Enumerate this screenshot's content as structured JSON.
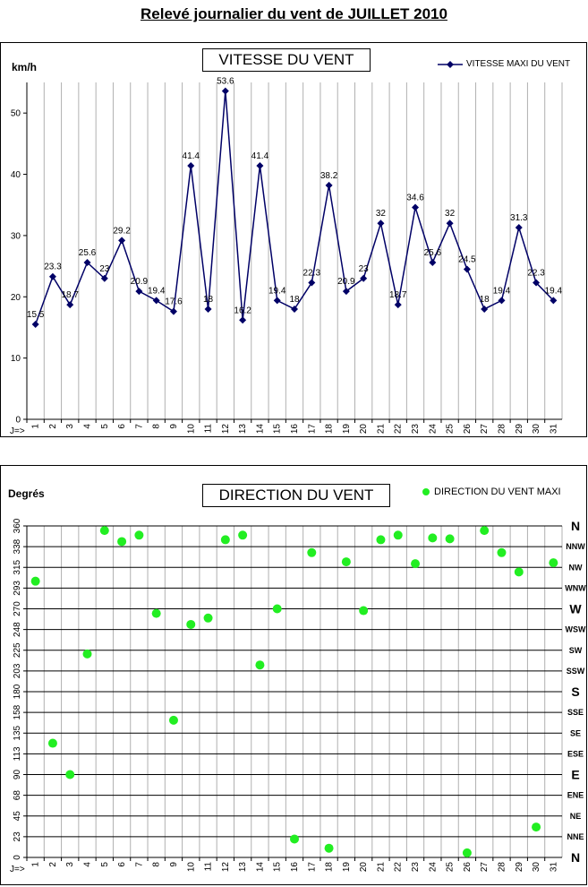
{
  "page": {
    "title": "Relevé journalier du vent de JUILLET 2010"
  },
  "chart_data": [
    {
      "type": "line",
      "title": "VITESSE DU VENT",
      "ylabel": "km/h",
      "xlabel": "",
      "x_prefix": "J=>",
      "categories": [
        "1",
        "2",
        "3",
        "4",
        "5",
        "6",
        "7",
        "8",
        "9",
        "10",
        "11",
        "12",
        "13",
        "14",
        "15",
        "16",
        "17",
        "18",
        "19",
        "20",
        "21",
        "22",
        "23",
        "24",
        "25",
        "26",
        "27",
        "28",
        "29",
        "30",
        "31"
      ],
      "series": [
        {
          "name": "VITESSE MAXI DU VENT",
          "color": "#000066",
          "values": [
            15.5,
            23.3,
            18.7,
            25.6,
            23,
            29.2,
            20.9,
            19.4,
            17.6,
            41.4,
            18,
            53.6,
            16.2,
            41.4,
            19.4,
            18,
            22.3,
            38.2,
            20.9,
            23,
            32,
            18.7,
            34.6,
            25.6,
            32,
            24.5,
            18,
            19.4,
            31.3,
            22.3,
            19.4
          ]
        }
      ],
      "data_labels": [
        "15.5",
        "23.3",
        "18.7",
        "25.6",
        "23",
        "29.2",
        "20.9",
        "19.4",
        "17.6",
        "41.4",
        "18",
        "53.6",
        "16.2",
        "41.4",
        "19.4",
        "18",
        "22.3",
        "38.2",
        "20.9",
        "23",
        "32",
        "18.7",
        "34.6",
        "25.6",
        "32",
        "24.5",
        "18",
        "19.4",
        "31.3",
        "22.3",
        "19.4"
      ],
      "ylim": [
        0,
        55
      ],
      "yticks": [
        0,
        10,
        20,
        30,
        40,
        50
      ],
      "grid": "vertical",
      "legend": "top-right"
    },
    {
      "type": "scatter",
      "title": "DIRECTION DU VENT",
      "ylabel": "Degrés",
      "xlabel": "",
      "x_prefix": "J=>",
      "categories": [
        "1",
        "2",
        "3",
        "4",
        "5",
        "6",
        "7",
        "8",
        "9",
        "10",
        "11",
        "12",
        "13",
        "14",
        "15",
        "16",
        "17",
        "18",
        "19",
        "20",
        "21",
        "22",
        "23",
        "24",
        "25",
        "26",
        "27",
        "28",
        "29",
        "30",
        "31"
      ],
      "series": [
        {
          "name": "DIRECTION DU VENT MAXI",
          "color": "#22ee22",
          "values": [
            300,
            124,
            90,
            221,
            355,
            343,
            350,
            265,
            149,
            253,
            260,
            345,
            350,
            209,
            270,
            20,
            331,
            10,
            321,
            268,
            345,
            350,
            319,
            347,
            346,
            5,
            355,
            331,
            310,
            33,
            320
          ]
        }
      ],
      "ylim": [
        0,
        360
      ],
      "yticks": [
        "0",
        "23",
        "45",
        "68",
        "90",
        "113",
        "135",
        "158",
        "180",
        "203",
        "225",
        "248",
        "270",
        "293",
        "315",
        "338",
        "360"
      ],
      "compass_labels": [
        "N",
        "NNE",
        "NE",
        "ENE",
        "E",
        "ESE",
        "SE",
        "SSE",
        "S",
        "SSW",
        "SW",
        "WSW",
        "W",
        "WNW",
        "NW",
        "NNW",
        "N"
      ],
      "grid": "both",
      "legend": "top-right"
    }
  ]
}
